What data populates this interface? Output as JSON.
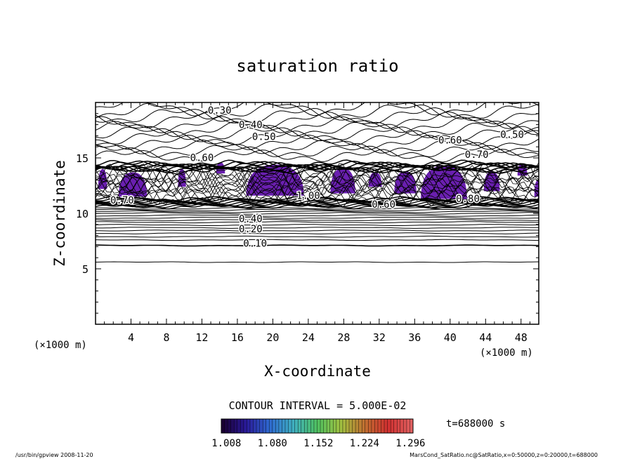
{
  "chart_data": {
    "type": "contour",
    "title": "saturation ratio",
    "xlabel": "X-coordinate",
    "ylabel": "Z-coordinate",
    "x_unit_left": "(×1000 m)",
    "x_unit_right": "(×1000 m)",
    "xlim": [
      0,
      50
    ],
    "ylim": [
      0,
      20
    ],
    "x_ticks": [
      4,
      8,
      12,
      16,
      20,
      24,
      28,
      32,
      36,
      40,
      44,
      48
    ],
    "y_ticks": [
      5,
      10,
      15
    ],
    "contour_interval_text": "CONTOUR INTERVAL = 5.000E-02",
    "time_text": "t=688000 s",
    "colorbar": {
      "tick_labels": [
        "1.008",
        "1.080",
        "1.152",
        "1.224",
        "1.296"
      ],
      "range": [
        1.0,
        1.3
      ],
      "colors": [
        "#1a0033",
        "#2a1a9a",
        "#2f6bd0",
        "#3fb0c0",
        "#4fc060",
        "#a0c040",
        "#c07030",
        "#d03030",
        "#e06060"
      ]
    },
    "shading_color": "#6a1fb0",
    "contour_labels": [
      {
        "text": "0.30",
        "x": 14.0,
        "y": 19.0
      },
      {
        "text": "0.40",
        "x": 17.5,
        "y": 17.7
      },
      {
        "text": "0.50",
        "x": 19.0,
        "y": 16.6
      },
      {
        "text": "0.60",
        "x": 40.0,
        "y": 16.3
      },
      {
        "text": "0.50",
        "x": 47.0,
        "y": 16.8
      },
      {
        "text": "0.70",
        "x": 43.0,
        "y": 15.0
      },
      {
        "text": "0.60",
        "x": 12.0,
        "y": 14.7
      },
      {
        "text": "0.70",
        "x": 3.0,
        "y": 10.9
      },
      {
        "text": "1.00",
        "x": 24.0,
        "y": 11.3
      },
      {
        "text": "0.60",
        "x": 32.5,
        "y": 10.5
      },
      {
        "text": "0.80",
        "x": 42.0,
        "y": 11.0
      },
      {
        "text": "0.40",
        "x": 17.5,
        "y": 9.2
      },
      {
        "text": "0.20",
        "x": 17.5,
        "y": 8.3
      },
      {
        "text": "0.10",
        "x": 18.0,
        "y": 7.0
      }
    ]
  },
  "footer": {
    "left": "/usr/bin/gpview   2008-11-20",
    "right": "MarsCond_SatRatio.nc@SatRatio,x=0:50000,z=0:20000,t=688000"
  }
}
